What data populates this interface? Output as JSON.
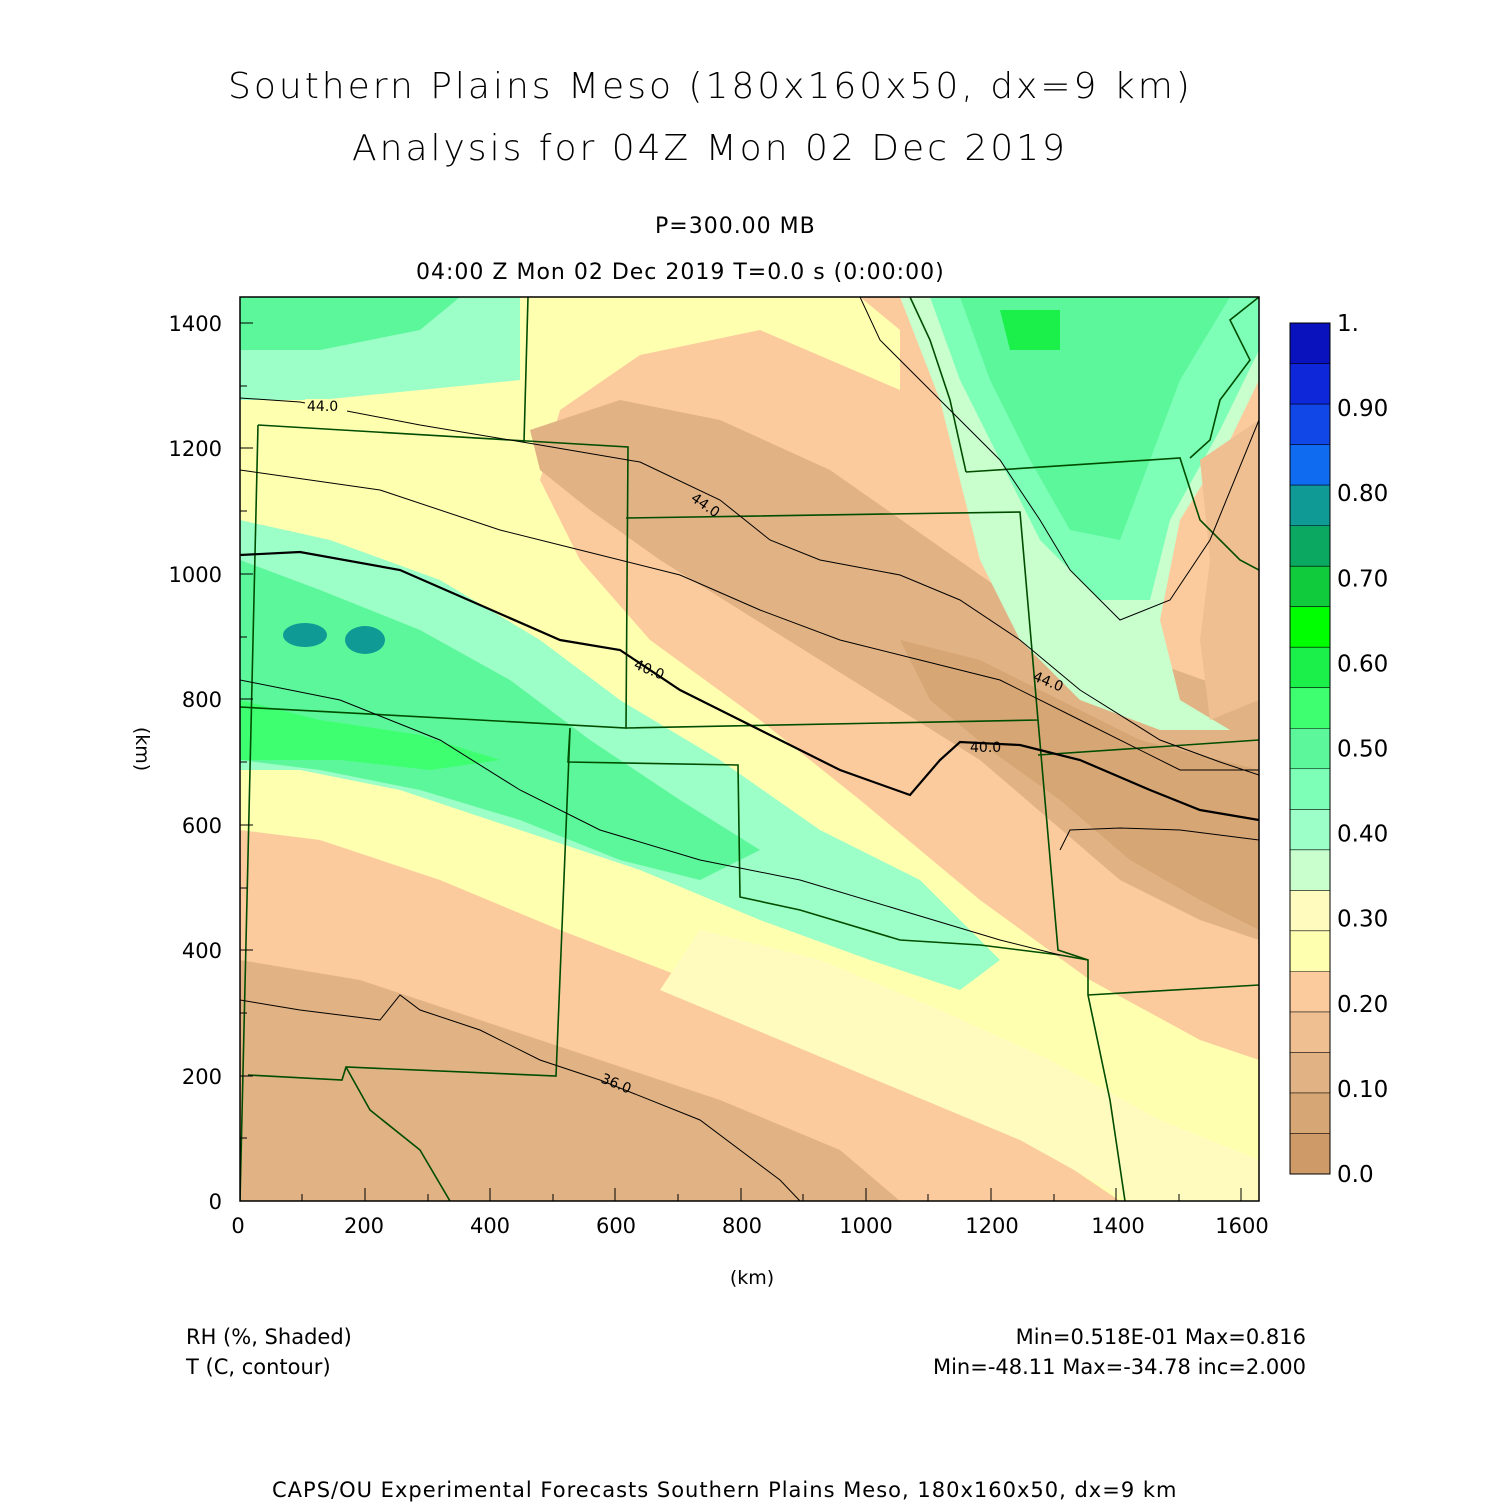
{
  "title_line1": "Southern Plains Meso (180x160x50, dx=9 km)",
  "title_line2": "Analysis for 04Z Mon 02 Dec 2019",
  "level": "P=300.00 MB",
  "time_line": "04:00 Z Mon 02 Dec 2019   T=0.0 s (0:00:00)",
  "x_axis_label": "(km)",
  "y_axis_label": "(km)",
  "x_ticks": [
    "0",
    "200",
    "400",
    "600",
    "800",
    "1000",
    "1200",
    "1400",
    "1600"
  ],
  "y_ticks": [
    "0",
    "200",
    "400",
    "600",
    "800",
    "1000",
    "1200",
    "1400"
  ],
  "colorbar_labels": [
    "0.0",
    "0.10",
    "0.20",
    "0.30",
    "0.40",
    "0.50",
    "0.60",
    "0.70",
    "0.80",
    "0.90",
    "1."
  ],
  "colorbar_colors": [
    "#cd9a68",
    "#d7a675",
    "#e1b283",
    "#efbf92",
    "#fbcb9e",
    "#ffffb0",
    "#fffbbf",
    "#c8ffcd",
    "#9cffc8",
    "#7dffb8",
    "#5cf79a",
    "#3dff70",
    "#1aef4a",
    "#00ff00",
    "#10cc3c",
    "#0aa860",
    "#0f9a96",
    "#0f6bf0",
    "#1147e6",
    "#0d27d9",
    "#0a12bd"
  ],
  "contour_labels": [
    "44.0",
    "44.0",
    "40.0",
    "40.0",
    "44.0",
    "40.0",
    "36.0"
  ],
  "legend_field1": "RH (%, Shaded)",
  "legend_field2": "T (C, contour)",
  "stats_field1": "Min=0.518E-01 Max=0.816",
  "stats_field2": "Min=-48.11 Max=-34.78 inc=2.000",
  "footer": "CAPS/OU Experimental Forecasts  Southern Plains Meso, 180x160x50, dx=9 km",
  "colors": {
    "border": "#004d00",
    "contour": "#000000",
    "frame": "#000000"
  }
}
